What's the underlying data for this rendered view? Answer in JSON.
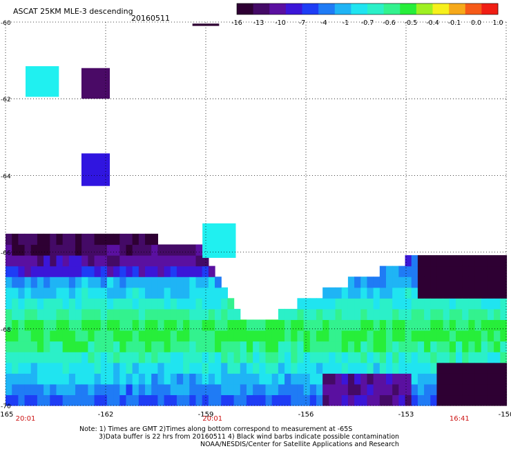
{
  "title": "ASCAT 25KM MLE-3 descending",
  "date": "20160511",
  "colorbar": {
    "colors": [
      "#2e0033",
      "#440a66",
      "#5a10a0",
      "#3b16d8",
      "#1e3df5",
      "#1f7bf5",
      "#1fb4f5",
      "#20e4f0",
      "#2bf0c8",
      "#33f28e",
      "#27ee3a",
      "#9ff022",
      "#f6f01c",
      "#f6a91a",
      "#f65a18",
      "#f01e14"
    ],
    "labels": [
      "-16",
      "-13",
      "-10",
      "-7",
      "-4",
      "-1",
      "-0.7",
      "-0.6",
      "-0.5",
      "-0.4",
      "-0.1",
      "0.0",
      "1.0"
    ]
  },
  "notes": {
    "line1": "Note: 1) Times are GMT 2)Times along bottom correspond to measurement at -65S",
    "line2": "3)Data buffer is 22 hrs from 20160511 4) Black wind barbs indicate possible contamination",
    "line3": "NOAA/NESDIS/Center for Satellite Applications and Research"
  },
  "time_labels": [
    {
      "label": "20:01",
      "lon": -164.4
    },
    {
      "label": "20:01",
      "lon": -158.8
    },
    {
      "label": "16:41",
      "lon": -151.4
    }
  ],
  "chart_data": {
    "type": "heatmap",
    "xlabel": "",
    "ylabel": "",
    "xlim": [
      -165,
      -150
    ],
    "ylim": [
      -70,
      -60
    ],
    "xticks": [
      "-165",
      "-162",
      "-159",
      "-156",
      "-153",
      "-150"
    ],
    "yticks": [
      "-60",
      "-62",
      "-64",
      "-66",
      "-68",
      "-70"
    ],
    "ytick_values": [
      -60,
      -62,
      -64,
      -66,
      -68,
      -70
    ],
    "xtick_values": [
      -165,
      -162,
      -159,
      -156,
      -153,
      -150
    ],
    "isolated_cells": [
      {
        "lon": -163.9,
        "lat": -61.55,
        "w": 1.0,
        "h": 0.8,
        "color": "#20f0f0"
      },
      {
        "lon": -162.3,
        "lat": -61.6,
        "w": 0.85,
        "h": 0.8,
        "color": "#4a0a66"
      },
      {
        "lon": -162.3,
        "lat": -63.85,
        "w": 0.85,
        "h": 0.85,
        "color": "#3015e0"
      },
      {
        "lon": -158.6,
        "lat": -65.7,
        "w": 1.0,
        "h": 0.9,
        "color": "#20f0f0"
      },
      {
        "lon": -159.0,
        "lat": -60.07,
        "w": 0.8,
        "h": 0.06,
        "color": "#2e0033"
      }
    ],
    "swath_top_boundary": [
      [
        -165,
        -65.7
      ],
      [
        -161.7,
        -65.7
      ],
      [
        -159.3,
        -65.9
      ],
      [
        -158.6,
        -66.7
      ],
      [
        -157.8,
        -68.0
      ],
      [
        -157.0,
        -67.8
      ],
      [
        -156.4,
        -67.5
      ],
      [
        -155.5,
        -67.2
      ],
      [
        -154.6,
        -66.9
      ],
      [
        -153.2,
        -66.4
      ],
      [
        -152.2,
        -66.1
      ],
      [
        -150,
        -66.1
      ]
    ],
    "swath_bottom": -70
  }
}
